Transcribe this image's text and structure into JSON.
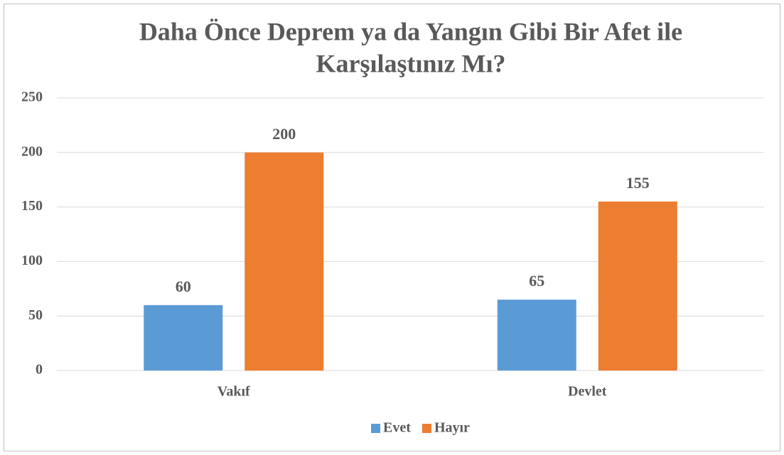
{
  "chart_data": {
    "type": "bar",
    "title": [
      "Daha Önce Deprem ya da Yangın Gibi Bir Afet ile",
      "Karşılaştınız Mı?"
    ],
    "categories": [
      "Vakıf",
      "Devlet"
    ],
    "series": [
      {
        "name": "Evet",
        "color": "#5b9bd5",
        "values": [
          60,
          65
        ]
      },
      {
        "name": "Hayır",
        "color": "#ed7d31",
        "values": [
          200,
          155
        ]
      }
    ],
    "ylim": [
      0,
      250
    ],
    "yticks": [
      0,
      50,
      100,
      150,
      200,
      250
    ],
    "grid": true,
    "legend": "bottom"
  }
}
